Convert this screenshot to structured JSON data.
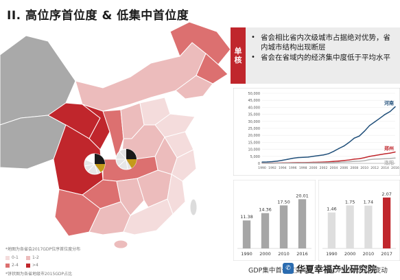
{
  "title": "II. 高位序首位度 & 低集中首位度",
  "map": {
    "note_top": "*地图为各省会2017GDP位序首位度分布",
    "note_bottom": "*饼状图为各省地级市2015GDP占比",
    "legend": [
      {
        "label": "0-1",
        "color": "#f4dcdc"
      },
      {
        "label": "1-2",
        "color": "#ecbcbc"
      },
      {
        "label": "2-4",
        "color": "#dc7070"
      },
      {
        "label": ">4",
        "color": "#c0262c"
      }
    ]
  },
  "callout": {
    "tab_line1": "单",
    "tab_line2": "核",
    "bullets": [
      "省会相比省内次级城市占据绝对优势，省内城市结构出现断层",
      "省会在省域内的经济集中度低于平均水平"
    ],
    "color": "#c0262c"
  },
  "chart_data": [
    {
      "type": "line",
      "x": [
        1990,
        1991,
        1992,
        1993,
        1994,
        1995,
        1996,
        1997,
        1998,
        1999,
        2000,
        2001,
        2002,
        2003,
        2004,
        2005,
        2006,
        2007,
        2008,
        2009,
        2010,
        2011,
        2012,
        2013,
        2014,
        2015,
        2016
      ],
      "x_tick_labels": [
        "1990",
        "1992",
        "1994",
        "1996",
        "1998",
        "2000",
        "2002",
        "2004",
        "2006",
        "2008",
        "2010",
        "2012",
        "2014",
        "2016"
      ],
      "ylim": [
        0,
        50000
      ],
      "y_ticks": [
        "0",
        "5,000",
        "10,000",
        "15,000",
        "20,000",
        "25,000",
        "30,000",
        "35,000",
        "40,000",
        "45,000",
        "50,000"
      ],
      "series": [
        {
          "name": "河南",
          "color": "#1f4e79",
          "values": [
            900,
            1000,
            1200,
            1600,
            2200,
            2900,
            3600,
            4100,
            4300,
            4500,
            5000,
            5500,
            6000,
            6900,
            8600,
            10600,
            12400,
            15000,
            18000,
            19500,
            23000,
            27000,
            29600,
            32200,
            34900,
            37000,
            40400
          ]
        },
        {
          "name": "郑州",
          "color": "#c0262c",
          "values": [
            120,
            140,
            170,
            230,
            300,
            380,
            460,
            530,
            580,
            620,
            730,
            820,
            930,
            1100,
            1380,
            1660,
            2010,
            2420,
            3000,
            3310,
            4040,
            4980,
            5550,
            6200,
            6780,
            7310,
            8110
          ]
        },
        {
          "name": "洛阳",
          "color": "#b0b0b0",
          "values": [
            60,
            70,
            85,
            110,
            150,
            190,
            230,
            260,
            280,
            300,
            340,
            380,
            430,
            500,
            620,
            800,
            950,
            1150,
            1400,
            1520,
            1860,
            2700,
            2980,
            3140,
            3280,
            3470,
            3780
          ]
        }
      ]
    },
    {
      "type": "bar",
      "categories": [
        "1990",
        "2000",
        "2010",
        "2016"
      ],
      "values": [
        11.38,
        14.36,
        17.5,
        20.01
      ],
      "value_labels": [
        "11.38",
        "14.36",
        "17.50",
        "20.01"
      ],
      "xlabel": "GDP集中首位度变动",
      "ylim": [
        0,
        24
      ],
      "colors": [
        "#a6a6a6",
        "#a6a6a6",
        "#a6a6a6",
        "#a6a6a6"
      ]
    },
    {
      "type": "bar",
      "categories": [
        "1990",
        "2000",
        "2010",
        "2017"
      ],
      "values": [
        1.46,
        1.75,
        1.74,
        2.07
      ],
      "value_labels": [
        "1.46",
        "1.75",
        "1.74",
        "2.07"
      ],
      "xlabel": "GDP位序首位度变动",
      "ylim": [
        0,
        2.4
      ],
      "colors": [
        "#dedede",
        "#dedede",
        "#dedede",
        "#c0262c"
      ]
    }
  ],
  "watermark": {
    "text": "华夏幸福产业研究院",
    "icon": "wechat-icon"
  }
}
